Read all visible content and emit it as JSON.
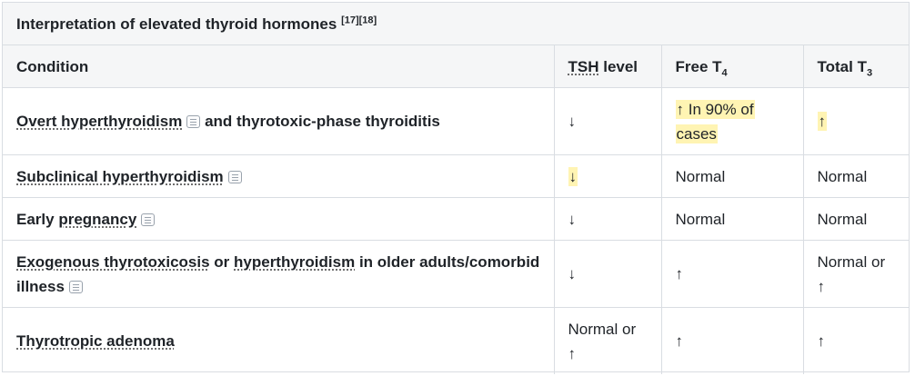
{
  "caption": {
    "title": "Interpretation of elevated thyroid hormones",
    "refs": "[17][18]"
  },
  "columns": {
    "condition": "Condition",
    "tsh": "TSH",
    "tsh_suffix": " level",
    "ft4_base": "Free T",
    "ft4_sub": "4",
    "tt3_base": "Total T",
    "tt3_sub": "3"
  },
  "rows": [
    {
      "cond_term": "Overt hyperthyroidism",
      "cond_rest": "and thyrotoxic-phase thyroiditis",
      "tsh": "↓",
      "ft4_line1": "↑ In 90% of",
      "ft4_line2": "cases",
      "tt3": "↑"
    },
    {
      "cond_term": "Subclinical hyperthyroidism",
      "tsh": "↓",
      "ft4": "Normal",
      "tt3": "Normal"
    },
    {
      "cond_plain": "Early",
      "cond_term": "pregnancy",
      "tsh": "↓",
      "ft4": "Normal",
      "tt3": "Normal"
    },
    {
      "cond_term1": "Exogenous thyrotoxicosis",
      "cond_mid": "or",
      "cond_term2": "hyperthyroidism",
      "cond_rest_line1": "in older adults/comorbid",
      "cond_rest_line2": "illness",
      "tsh": "↓",
      "ft4": "↑",
      "tt3_line1": "Normal or",
      "tt3_line2": "↑"
    },
    {
      "cond_term": "Thyrotropic adenoma",
      "tsh_line1": "Normal or",
      "tsh_line2": "↑",
      "ft4": "↑",
      "tt3": "↑"
    }
  ],
  "icons": {
    "note": "note-icon"
  },
  "colors": {
    "highlight": "#fff4b3",
    "header_bg": "#f5f6f7",
    "border": "#d9dde2"
  }
}
